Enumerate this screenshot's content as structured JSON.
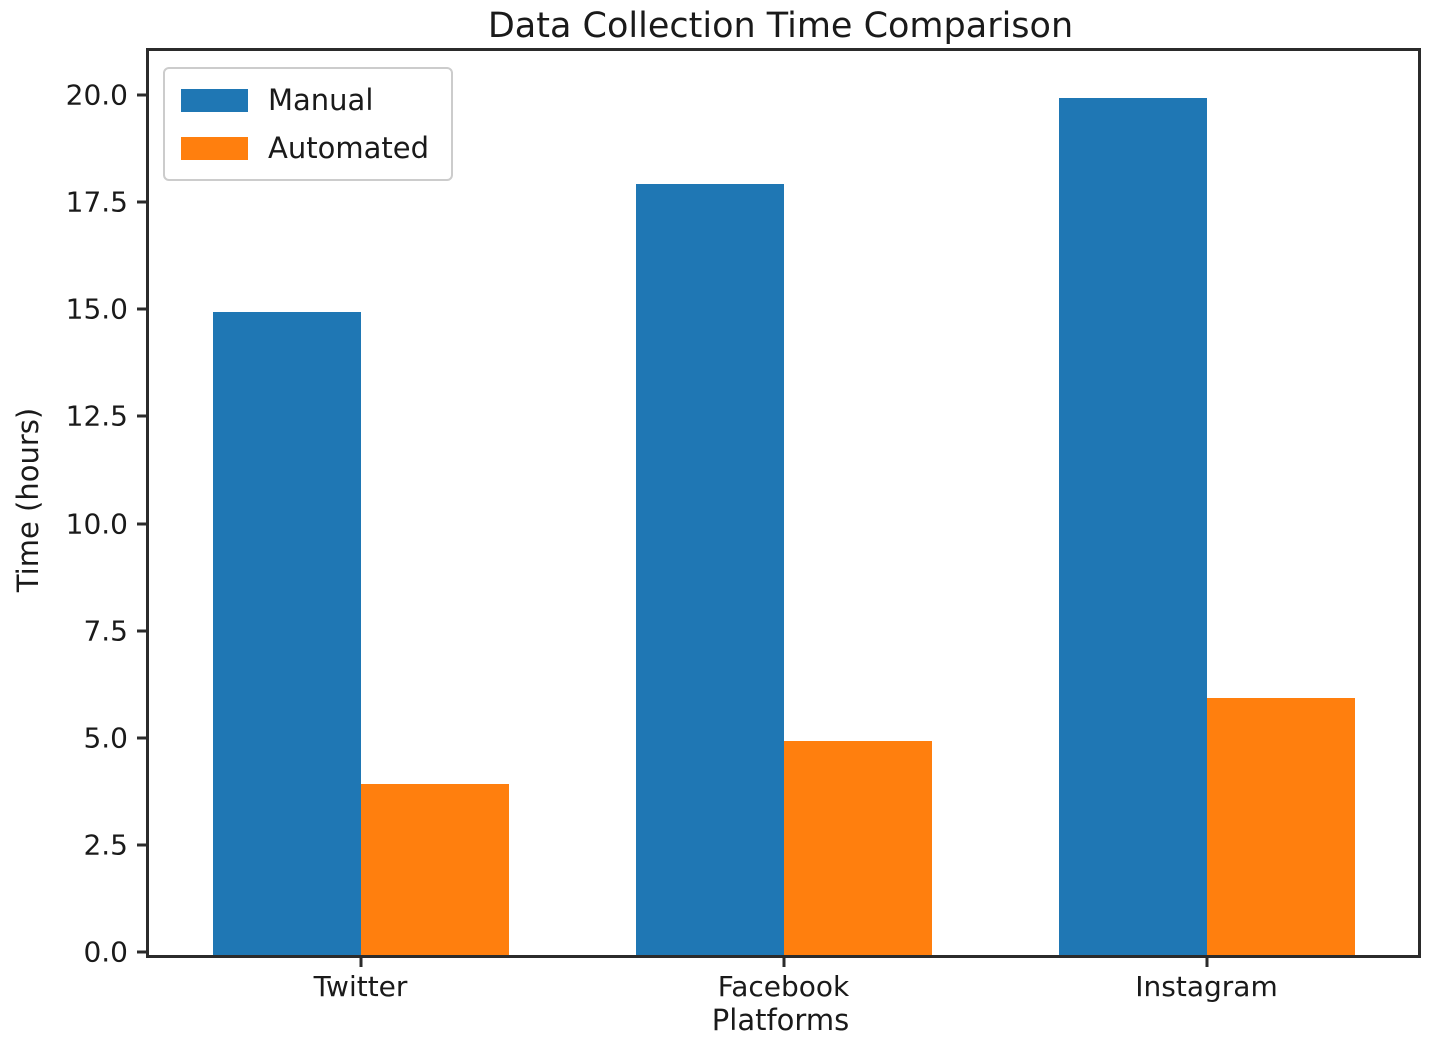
{
  "figure": {
    "title": "Data Collection Time Comparison"
  },
  "chart_data": {
    "type": "bar",
    "title": "Data Collection Time Comparison",
    "xlabel": "Platforms",
    "ylabel": "Time (hours)",
    "categories": [
      "Twitter",
      "Facebook",
      "Instagram"
    ],
    "series": [
      {
        "name": "Manual",
        "color": "#1f77b4",
        "values": [
          15,
          18,
          20
        ]
      },
      {
        "name": "Automated",
        "color": "#ff7f0e",
        "values": [
          4,
          5,
          6
        ]
      }
    ],
    "yticks": [
      "0.0",
      "2.5",
      "5.0",
      "7.5",
      "10.0",
      "12.5",
      "15.0",
      "17.5",
      "20.0"
    ],
    "ylim": [
      0,
      21.1
    ],
    "xlim": [
      -0.5,
      2.5
    ],
    "bar_width_fraction": 0.35,
    "grid": false,
    "legend": {
      "position": "upper-left",
      "labels": [
        "Manual",
        "Automated"
      ]
    }
  }
}
